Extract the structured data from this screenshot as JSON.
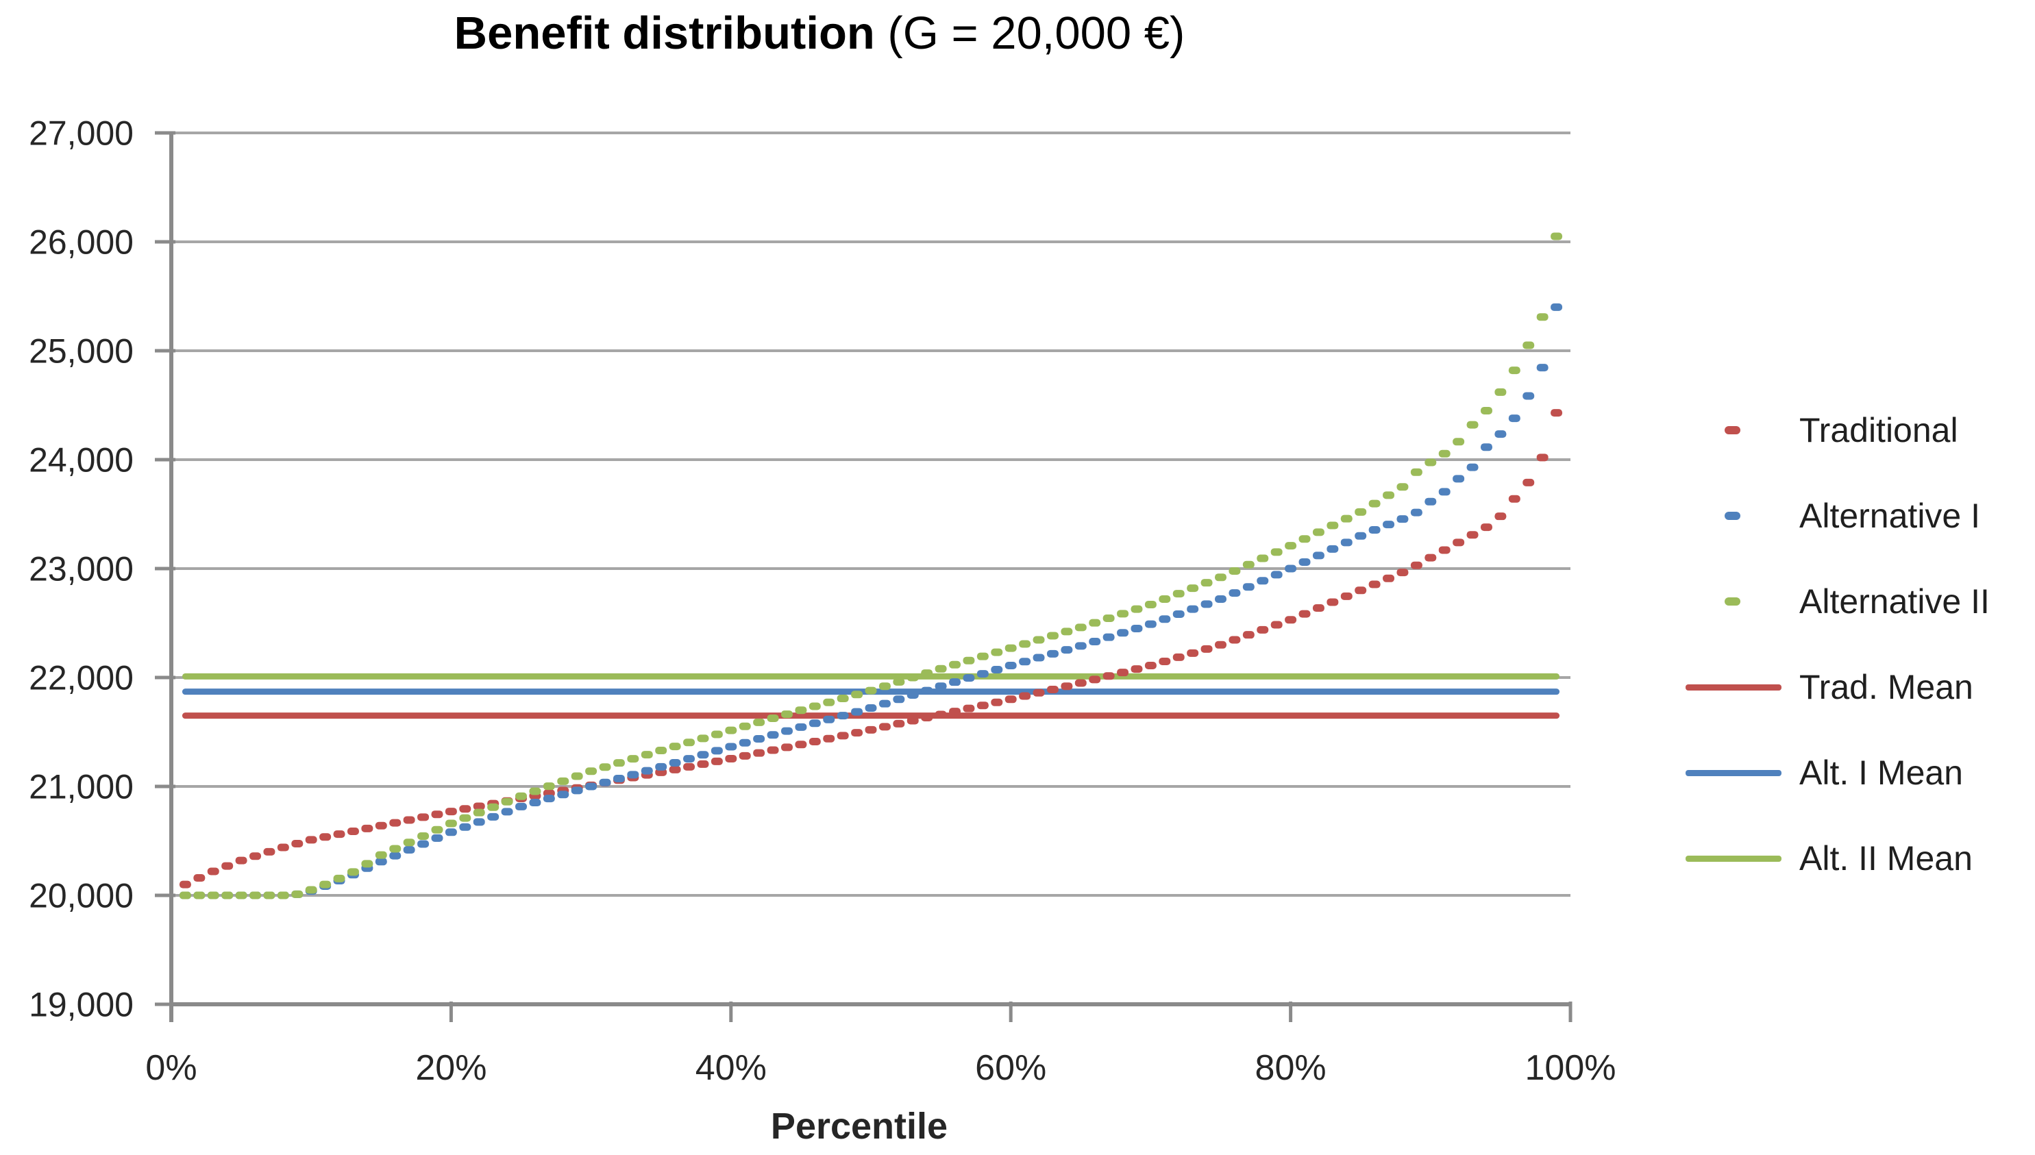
{
  "title": {
    "bold": "Benefit distribution",
    "regular": " (G = 20,000 €)"
  },
  "legend": {
    "position": "right",
    "items": [
      {
        "label": "Traditional",
        "color": "#C0504D",
        "style": "dash"
      },
      {
        "label": "Alternative I",
        "color": "#4F81BD",
        "style": "dash"
      },
      {
        "label": "Alternative II",
        "color": "#9BBB59",
        "style": "dash"
      },
      {
        "label": "Trad. Mean",
        "color": "#C0504D",
        "style": "line"
      },
      {
        "label": "Alt. I Mean",
        "color": "#4F81BD",
        "style": "line"
      },
      {
        "label": "Alt. II Mean",
        "color": "#9BBB59",
        "style": "line"
      }
    ]
  },
  "colors": {
    "traditional": "#C0504D",
    "alternative1": "#4F81BD",
    "alternative2": "#9BBB59",
    "gridline": "#A6A6A6",
    "axis": "#8A8A8A",
    "text": "#262626"
  },
  "chart_data": {
    "type": "scatter",
    "title": "Benefit distribution (G = 20,000 €)",
    "xlabel": "Percentile",
    "ylabel": "",
    "grid": true,
    "legend_position": "right",
    "x_axis": {
      "min": 0,
      "max": 100,
      "tick_values": [
        0,
        20,
        40,
        60,
        80,
        100
      ],
      "tick_labels": [
        "0%",
        "20%",
        "40%",
        "60%",
        "80%",
        "100%"
      ]
    },
    "y_axis": {
      "min": 19000,
      "max": 27000,
      "tick_step": 1000,
      "tick_values": [
        27000,
        26000,
        25000,
        24000,
        23000,
        22000,
        21000,
        20000,
        19000
      ],
      "tick_labels": [
        "27,000",
        "26,000",
        "25,000",
        "24,000",
        "23,000",
        "22,000",
        "21,000",
        "20,000",
        "19,000"
      ]
    },
    "series": [
      {
        "name": "Traditional",
        "type": "scatter-dash",
        "color": "#C0504D",
        "x_start_pct": 1,
        "x_step_pct": 1,
        "values": [
          20100,
          20160,
          20220,
          20270,
          20320,
          20360,
          20400,
          20440,
          20475,
          20510,
          20536,
          20562,
          20588,
          20614,
          20640,
          20666,
          20692,
          20718,
          20744,
          20770,
          20794,
          20818,
          20842,
          20866,
          20890,
          20914,
          20938,
          20962,
          20986,
          21010,
          21034,
          21058,
          21082,
          21106,
          21130,
          21155,
          21180,
          21205,
          21230,
          21255,
          21281,
          21307,
          21333,
          21359,
          21385,
          21412,
          21439,
          21466,
          21493,
          21520,
          21548,
          21576,
          21604,
          21632,
          21660,
          21688,
          21716,
          21744,
          21772,
          21800,
          21830,
          21860,
          21890,
          21920,
          21950,
          21982,
          22014,
          22046,
          22078,
          22110,
          22148,
          22186,
          22224,
          22262,
          22300,
          22346,
          22392,
          22438,
          22484,
          22530,
          22584,
          22638,
          22692,
          22746,
          22800,
          22855,
          22910,
          22965,
          23030,
          23100,
          23170,
          23240,
          23310,
          23380,
          23480,
          23640,
          23790,
          24020,
          24430
        ]
      },
      {
        "name": "Alternative I",
        "type": "scatter-dash",
        "color": "#4F81BD",
        "x_start_pct": 1,
        "x_step_pct": 1,
        "values": [
          20000,
          20000,
          20000,
          20000,
          20000,
          20000,
          20000,
          20000,
          20010,
          20040,
          20085,
          20135,
          20190,
          20250,
          20310,
          20364,
          20418,
          20472,
          20526,
          20580,
          20627,
          20674,
          20721,
          20768,
          20815,
          20852,
          20889,
          20926,
          20963,
          21000,
          21036,
          21072,
          21108,
          21144,
          21180,
          21217,
          21254,
          21291,
          21328,
          21365,
          21401,
          21437,
          21473,
          21509,
          21545,
          21580,
          21615,
          21650,
          21685,
          21720,
          21760,
          21800,
          21840,
          21880,
          21920,
          21958,
          21996,
          22034,
          22072,
          22110,
          22146,
          22182,
          22218,
          22254,
          22290,
          22330,
          22370,
          22410,
          22450,
          22490,
          22536,
          22582,
          22628,
          22674,
          22720,
          22776,
          22832,
          22888,
          22944,
          23000,
          23060,
          23120,
          23180,
          23240,
          23300,
          23355,
          23405,
          23455,
          23515,
          23615,
          23705,
          23825,
          23930,
          24115,
          24235,
          24380,
          24585,
          24845,
          25400
        ]
      },
      {
        "name": "Alternative II",
        "type": "scatter-dash",
        "color": "#9BBB59",
        "x_start_pct": 1,
        "x_step_pct": 1,
        "values": [
          20000,
          20000,
          20000,
          20000,
          20000,
          20000,
          20000,
          20000,
          20010,
          20050,
          20100,
          20155,
          20215,
          20290,
          20370,
          20428,
          20486,
          20544,
          20602,
          20660,
          20710,
          20760,
          20810,
          20860,
          20910,
          20956,
          21002,
          21048,
          21094,
          21140,
          21178,
          21216,
          21254,
          21292,
          21330,
          21367,
          21404,
          21441,
          21478,
          21515,
          21552,
          21589,
          21626,
          21663,
          21700,
          21736,
          21772,
          21808,
          21844,
          21880,
          21920,
          21960,
          22000,
          22040,
          22080,
          22118,
          22156,
          22194,
          22232,
          22270,
          22308,
          22346,
          22384,
          22422,
          22460,
          22502,
          22544,
          22586,
          22628,
          22670,
          22720,
          22770,
          22820,
          22870,
          22920,
          22978,
          23036,
          23094,
          23152,
          23210,
          23272,
          23334,
          23396,
          23458,
          23520,
          23597,
          23674,
          23750,
          23885,
          23975,
          24055,
          24165,
          24320,
          24450,
          24620,
          24820,
          25050,
          25310,
          26050
        ]
      },
      {
        "name": "Trad. Mean",
        "type": "hline",
        "color": "#C0504D",
        "value": 21650
      },
      {
        "name": "Alt. I Mean",
        "type": "hline",
        "color": "#4F81BD",
        "value": 21870
      },
      {
        "name": "Alt. II Mean",
        "type": "hline",
        "color": "#9BBB59",
        "value": 22010
      }
    ]
  }
}
